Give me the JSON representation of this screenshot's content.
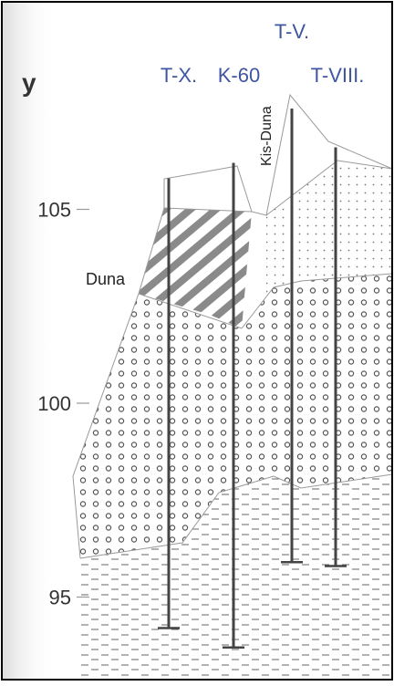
{
  "axis": {
    "label": "y",
    "ticks": [
      {
        "value": 105,
        "label": "105"
      },
      {
        "value": 100,
        "label": "100"
      },
      {
        "value": 95,
        "label": "95"
      }
    ]
  },
  "boreholes": [
    {
      "label": "T-X.",
      "top": 105.8,
      "bottom": 94.2
    },
    {
      "label": "K-60",
      "top": 106.2,
      "bottom": 93.7
    },
    {
      "label": "T-V.",
      "top": 107.6,
      "bottom": 95.9
    },
    {
      "label": "T-VIII.",
      "top": 106.6,
      "bottom": 95.8
    }
  ],
  "terrain_labels": {
    "left": "Duna",
    "right": "Kis-Duna"
  },
  "colors": {
    "borehole_label": "#3f55a0",
    "line": "#444444",
    "gravel_circle": "#555555",
    "hatch": "#888888"
  }
}
